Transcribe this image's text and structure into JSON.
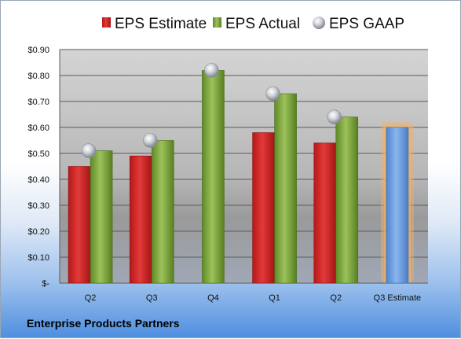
{
  "chart_data": {
    "type": "bar",
    "categories": [
      "Q2",
      "Q3",
      "Q4",
      "Q1",
      "Q2",
      "Q3 Estimate"
    ],
    "series": [
      {
        "name": "EPS Estimate",
        "values": [
          0.45,
          0.49,
          null,
          0.58,
          0.54,
          null
        ],
        "color": "#cc2222"
      },
      {
        "name": "EPS Actual",
        "values": [
          0.51,
          0.55,
          0.82,
          0.73,
          0.64,
          null
        ],
        "color": "#7a9f3a"
      },
      {
        "name": "EPS GAAP",
        "type": "scatter",
        "values": [
          0.51,
          0.55,
          0.82,
          0.73,
          0.64,
          null
        ],
        "color": "#b8bcc2"
      }
    ],
    "highlight": {
      "category": "Q3 Estimate",
      "value": 0.6,
      "color": "#6a9de0",
      "glow": "#f6b060"
    },
    "y_ticks": [
      "$-",
      "$0.10",
      "$0.20",
      "$0.30",
      "$0.40",
      "$0.50",
      "$0.60",
      "$0.70",
      "$0.80",
      "$0.90"
    ],
    "ylim": [
      0,
      0.9
    ],
    "grid": true,
    "legend_position": "top",
    "plot_background": "gradient-gray"
  },
  "footer": {
    "company": "Enterprise Products Partners"
  }
}
